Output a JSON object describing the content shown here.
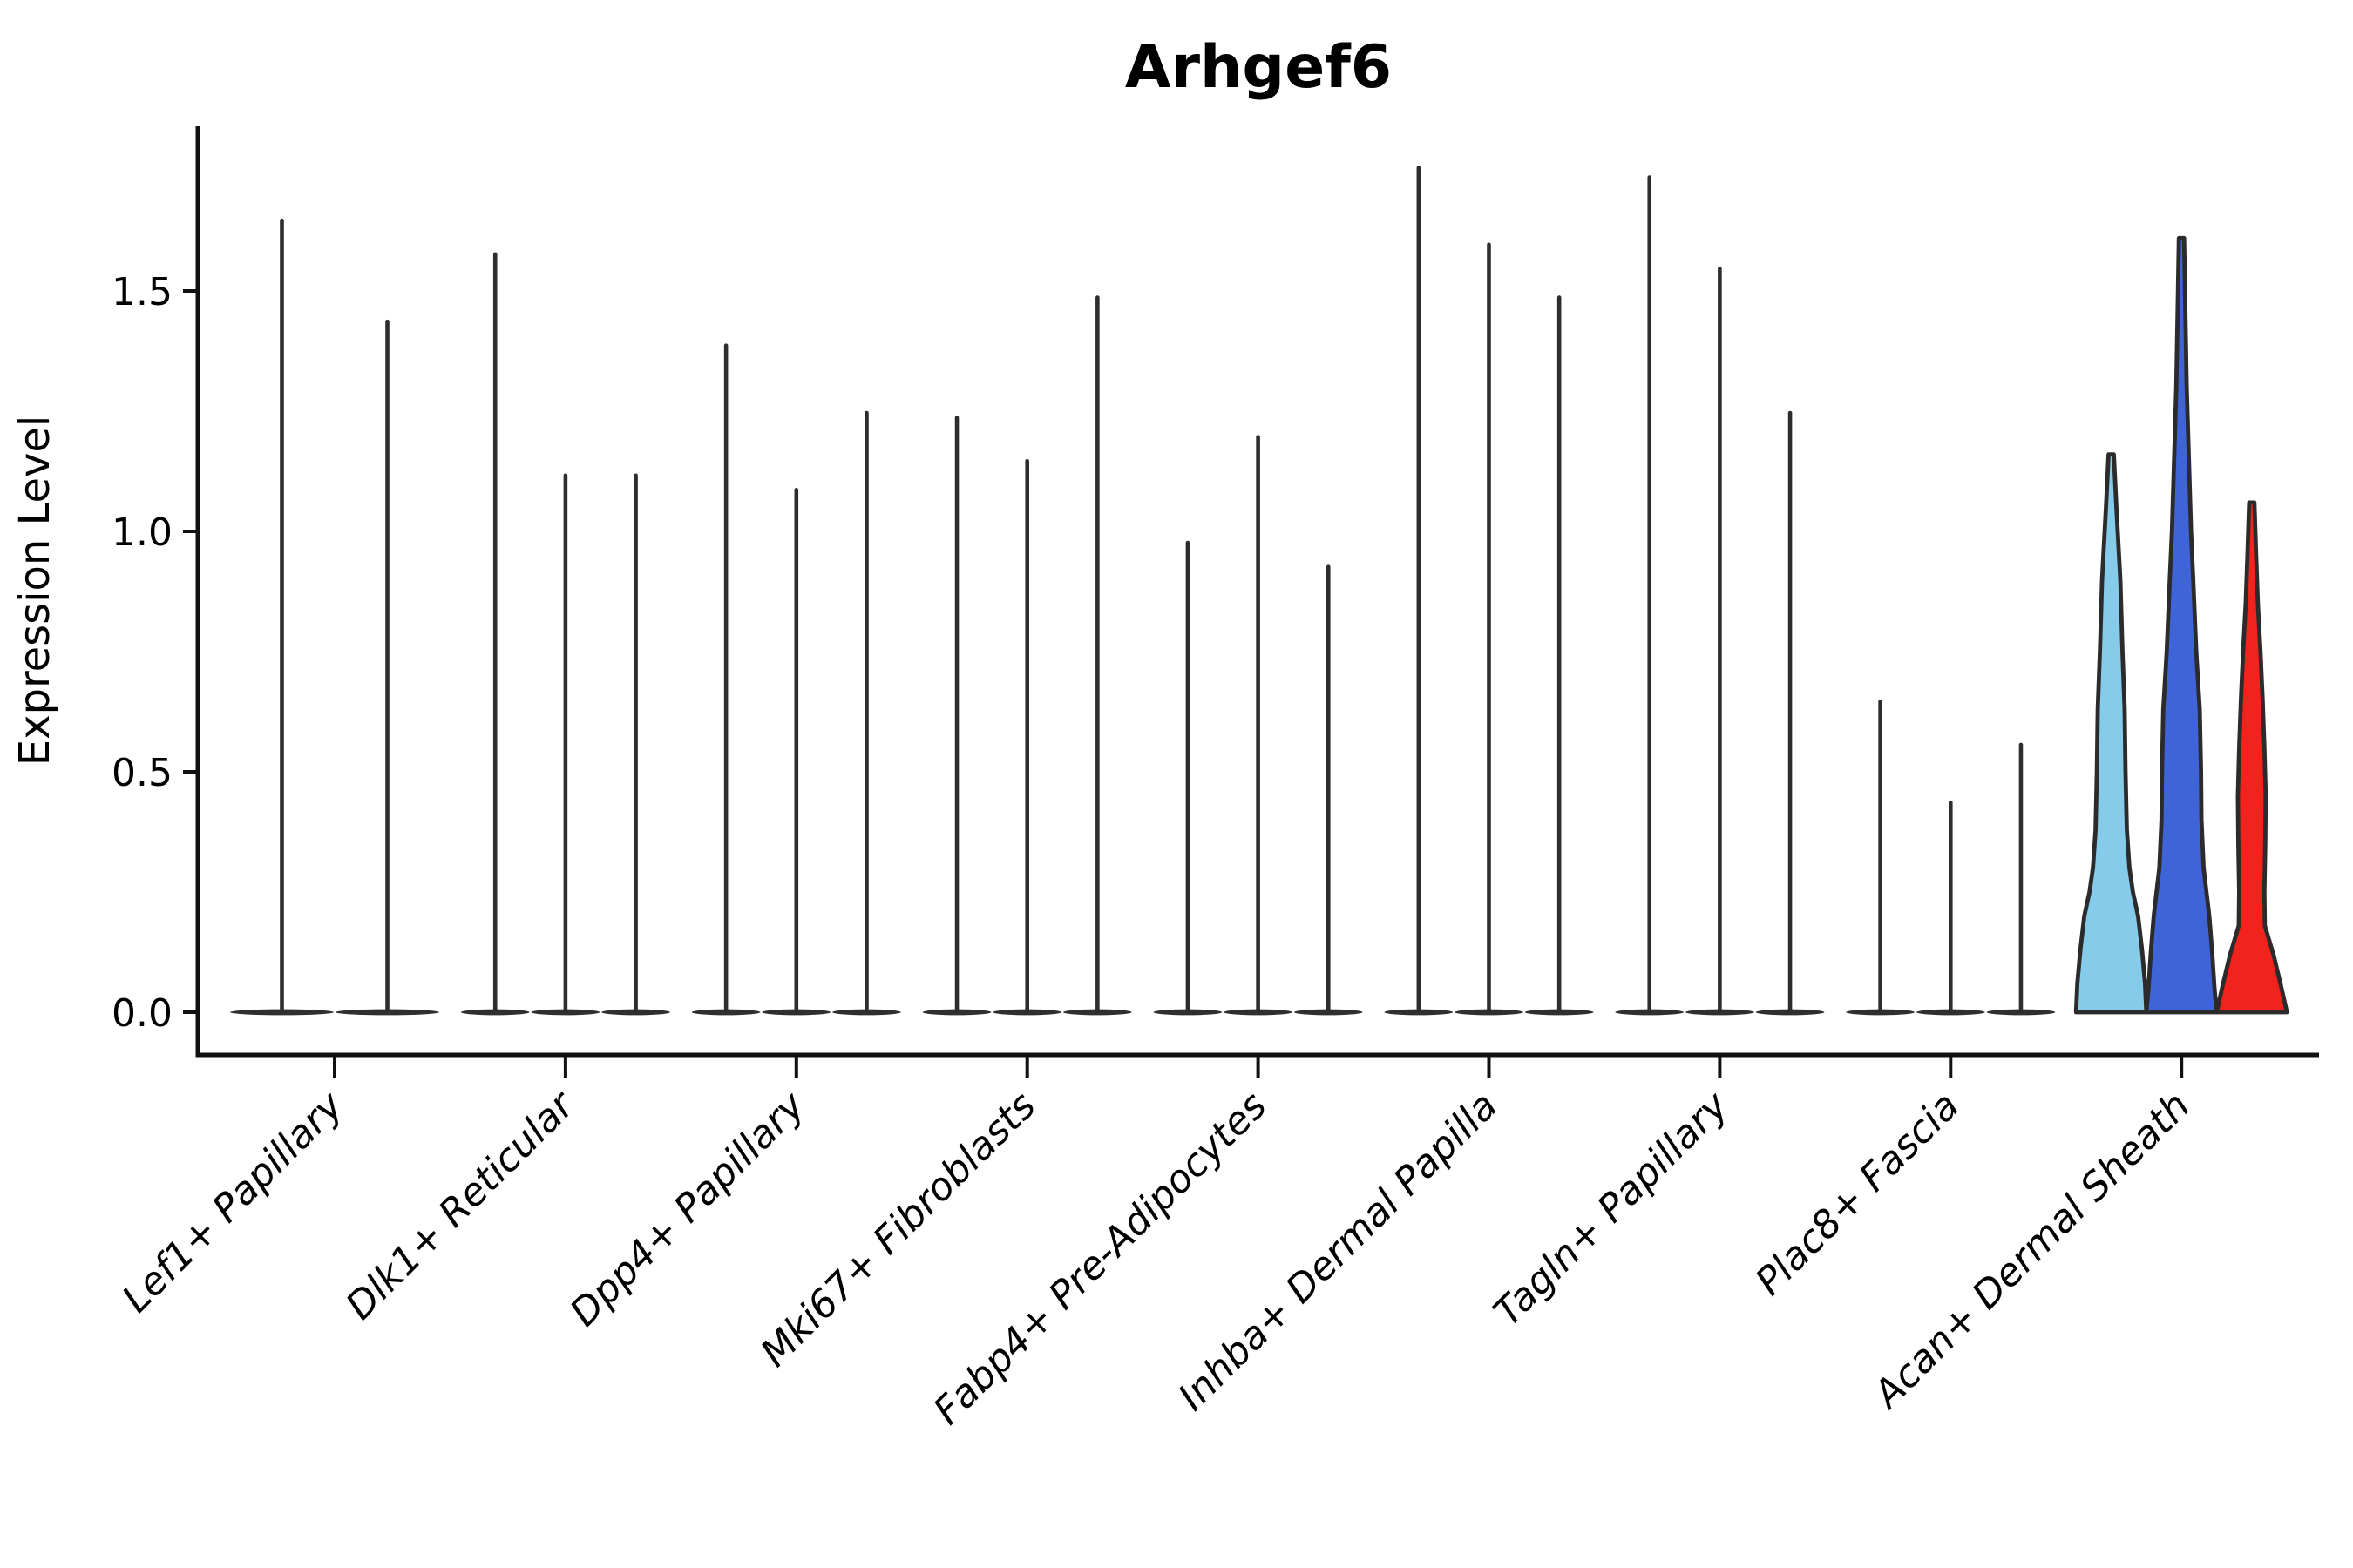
{
  "title": "Arhgef6",
  "y_axis": {
    "label": "Expression Level",
    "tick_labels": [
      "0.0",
      "0.5",
      "1.0",
      "1.5"
    ]
  },
  "chart_data": {
    "type": "violin",
    "title": "Arhgef6",
    "xlabel": "",
    "ylabel": "Expression Level",
    "ylim": [
      -0.09,
      1.84
    ],
    "ytick_values": [
      0,
      0.5,
      1.0,
      1.5
    ],
    "ytick_labels": [
      "0.0",
      "0.5",
      "1.0",
      "1.5"
    ],
    "grid": false,
    "legend_position": "none",
    "x_label_rotation_deg": 45,
    "categories": [
      "Lef1+ Papillary",
      "Dlk1+ Reticular",
      "Dpp4+ Papillary",
      "Mki67+ Fibroblasts",
      "Fabp4+ Pre-Adipocytes",
      "Inhba+ Dermal Papilla",
      "Tagln+ Papillary",
      "Plac8+ Fascia",
      "Acan+ Dermal Sheath"
    ],
    "groups": [
      {
        "category": "Lef1+ Papillary",
        "violins": [
          {
            "style": "spike",
            "max": 1.65
          },
          {
            "style": "spike",
            "max": 1.44
          }
        ]
      },
      {
        "category": "Dlk1+ Reticular",
        "violins": [
          {
            "style": "spike",
            "max": 1.58
          },
          {
            "style": "spike",
            "max": 1.12
          },
          {
            "style": "spike",
            "max": 1.12
          }
        ]
      },
      {
        "category": "Dpp4+ Papillary",
        "violins": [
          {
            "style": "spike",
            "max": 1.39
          },
          {
            "style": "spike",
            "max": 1.09
          },
          {
            "style": "spike",
            "max": 1.25
          }
        ]
      },
      {
        "category": "Mki67+ Fibroblasts",
        "violins": [
          {
            "style": "spike",
            "max": 1.24
          },
          {
            "style": "spike",
            "max": 1.15
          },
          {
            "style": "spike",
            "max": 1.49
          }
        ]
      },
      {
        "category": "Fabp4+ Pre-Adipocytes",
        "violins": [
          {
            "style": "spike",
            "max": 0.98
          },
          {
            "style": "spike",
            "max": 1.2
          },
          {
            "style": "spike",
            "max": 0.93
          }
        ]
      },
      {
        "category": "Inhba+ Dermal Papilla",
        "violins": [
          {
            "style": "spike",
            "max": 1.76
          },
          {
            "style": "spike",
            "max": 1.6
          },
          {
            "style": "spike",
            "max": 1.49
          }
        ]
      },
      {
        "category": "Tagln+ Papillary",
        "violins": [
          {
            "style": "spike",
            "max": 1.74
          },
          {
            "style": "spike",
            "max": 1.55
          },
          {
            "style": "spike",
            "max": 1.25
          }
        ]
      },
      {
        "category": "Plac8+ Fascia",
        "violins": [
          {
            "style": "spike",
            "max": 0.65
          },
          {
            "style": "spike",
            "max": 0.44
          },
          {
            "style": "spike",
            "max": 0.56
          }
        ]
      },
      {
        "category": "Acan+ Dermal Sheath",
        "violins": [
          {
            "style": "filled",
            "max": 1.16,
            "fill": "#87CBEA",
            "profile": [
              [
                1.16,
                3
              ],
              [
                1.05,
                6
              ],
              [
                0.9,
                10.5
              ],
              [
                0.75,
                13
              ],
              [
                0.63,
                15.5
              ],
              [
                0.5,
                16.5
              ],
              [
                0.38,
                18
              ],
              [
                0.3,
                21
              ],
              [
                0.25,
                25
              ],
              [
                0.2,
                31
              ],
              [
                0.13,
                35.5
              ],
              [
                0.06,
                39
              ],
              [
                0.0,
                40.5
              ]
            ]
          },
          {
            "style": "filled",
            "max": 1.61,
            "fill": "#3E64D8",
            "profile": [
              [
                1.61,
                3
              ],
              [
                1.45,
                4.5
              ],
              [
                1.3,
                6
              ],
              [
                1.15,
                8.5
              ],
              [
                1.0,
                11
              ],
              [
                0.9,
                13.5
              ],
              [
                0.75,
                17
              ],
              [
                0.63,
                21
              ],
              [
                0.5,
                22.5
              ],
              [
                0.4,
                23
              ],
              [
                0.3,
                25.5
              ],
              [
                0.2,
                32
              ],
              [
                0.12,
                35.5
              ],
              [
                0.05,
                38
              ],
              [
                0.0,
                40.5
              ]
            ]
          },
          {
            "style": "filled",
            "max": 1.06,
            "fill": "#F2231D",
            "profile": [
              [
                1.06,
                3
              ],
              [
                0.95,
                5
              ],
              [
                0.85,
                7
              ],
              [
                0.75,
                10
              ],
              [
                0.65,
                12.5
              ],
              [
                0.55,
                14.5
              ],
              [
                0.45,
                16
              ],
              [
                0.35,
                15.5
              ],
              [
                0.25,
                14.5
              ],
              [
                0.18,
                15
              ],
              [
                0.12,
                25
              ],
              [
                0.06,
                33
              ],
              [
                0.02,
                38
              ],
              [
                0.0,
                40.5
              ]
            ]
          }
        ]
      }
    ],
    "colors": {
      "spike_stroke": "#2d2d2d",
      "base_blob_fill": "#2f2f2f",
      "filled_outline": "#2b2b2b",
      "axis_spine": "#111111",
      "text": "#000000",
      "background": "#ffffff",
      "split_fills": [
        "#87CBEA",
        "#3E64D8",
        "#F2231D"
      ]
    }
  }
}
